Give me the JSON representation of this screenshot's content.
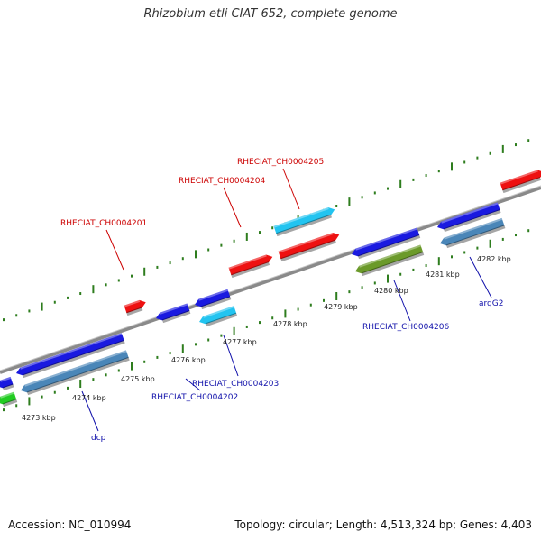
{
  "title": "Rhizobium etli CIAT 652, complete genome",
  "footer": {
    "accession": "Accession: NC_010994",
    "summary": "Topology: circular; Length: 4,513,324 bp; Genes: 4,403"
  },
  "colors": {
    "backbone": "#8a8a8a",
    "tick": "#2e7d1e",
    "forward_gene": "#ee1111",
    "reverse_label": "#1010aa",
    "forward_label": "#cc0000",
    "blue_gene": "#1a1ae0",
    "cyan_gene": "#22c4f0",
    "steel_gene": "#4a86b8",
    "olive_gene": "#6b9a2a",
    "green_gene": "#22cc22"
  },
  "map": {
    "tick_labels": [
      "4273 kbp",
      "4274 kbp",
      "4275 kbp",
      "4276 kbp",
      "4277 kbp",
      "4278 kbp",
      "4279 kbp",
      "4280 kbp",
      "4281 kbp",
      "4282 kbp"
    ],
    "forward_labels": [
      "RHECIAT_CH0004201",
      "RHECIAT_CH0004204",
      "RHECIAT_CH0004205"
    ],
    "reverse_labels": [
      "dcp",
      "RHECIAT_CH0004202",
      "RHECIAT_CH0004203",
      "RHECIAT_CH0004206",
      "argG2"
    ]
  }
}
